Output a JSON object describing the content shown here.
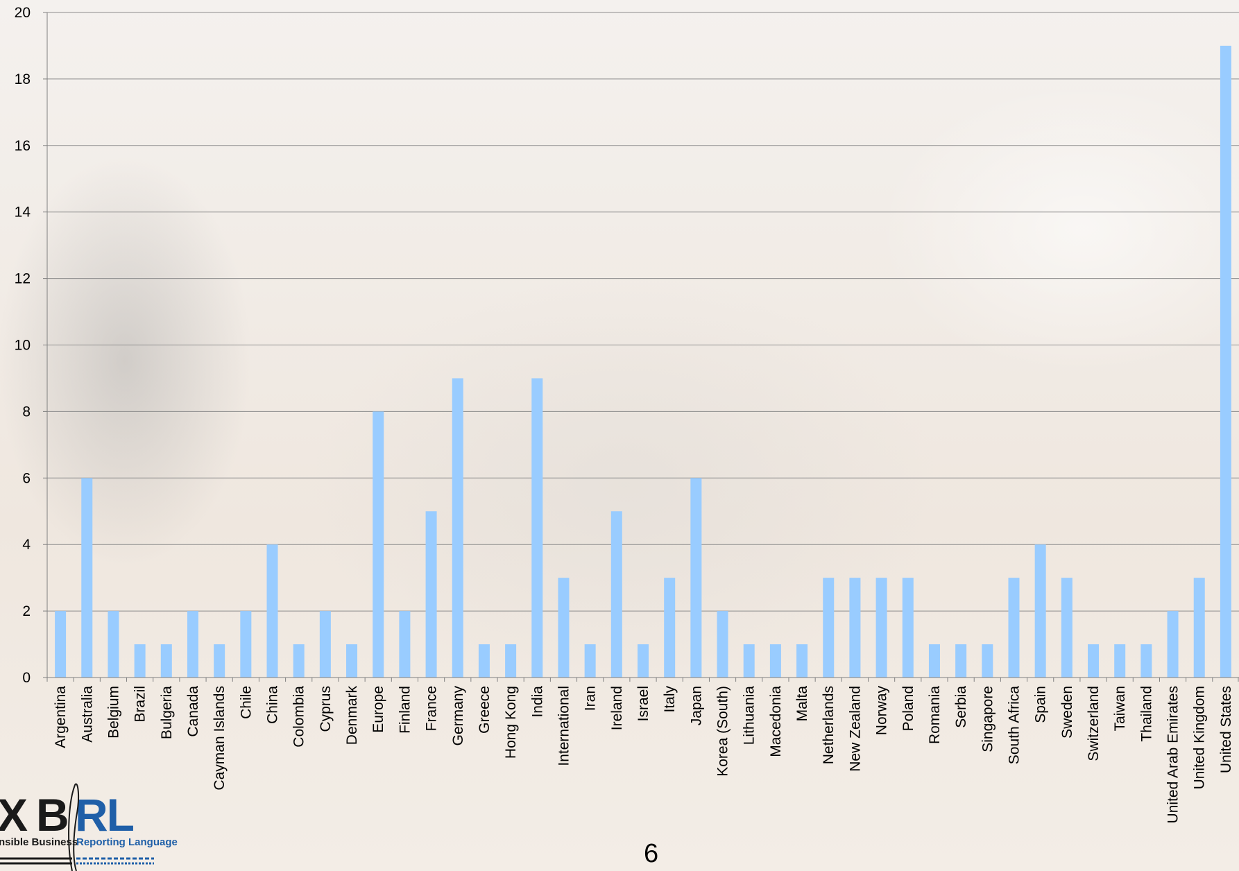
{
  "chart_data": {
    "type": "bar",
    "categories": [
      "Argentina",
      "Australia",
      "Belgium",
      "Brazil",
      "Bulgeria",
      "Canada",
      "Cayman Islands",
      "Chile",
      "China",
      "Colombia",
      "Cyprus",
      "Denmark",
      "Europe",
      "Finland",
      "France",
      "Germany",
      "Greece",
      "Hong Kong",
      "India",
      "International",
      "Iran",
      "Ireland",
      "Israel",
      "Italy",
      "Japan",
      "Korea (South)",
      "Lithuania",
      "Macedonia",
      "Malta",
      "Netherlands",
      "New Zealand",
      "Norway",
      "Poland",
      "Romania",
      "Serbia",
      "Singapore",
      "South Africa",
      "Spain",
      "Sweden",
      "Switzerland",
      "Taiwan",
      "Thailand",
      "United Arab Emirates",
      "United Kingdom",
      "United States"
    ],
    "values": [
      2,
      6,
      2,
      1,
      1,
      2,
      1,
      2,
      4,
      1,
      2,
      1,
      8,
      2,
      5,
      9,
      1,
      1,
      9,
      3,
      1,
      5,
      1,
      3,
      6,
      2,
      1,
      1,
      1,
      3,
      3,
      3,
      3,
      1,
      1,
      1,
      3,
      4,
      3,
      1,
      1,
      1,
      2,
      3,
      19
    ],
    "ylim": [
      0,
      20
    ],
    "yticks": [
      0,
      2,
      4,
      6,
      8,
      10,
      12,
      14,
      16,
      18,
      20
    ],
    "grid": true,
    "bar_color": "#99ccff",
    "gridline_color": "#8c8c8c"
  },
  "logo": {
    "x_letter": "X",
    "b_letter": "B",
    "rl_letters": "RL",
    "subtitle_left": "nsible Business",
    "subtitle_right": "Reporting Language",
    "dark_color": "#1a1a1a",
    "blue_color": "#1f5fa8"
  },
  "page_number": "6"
}
